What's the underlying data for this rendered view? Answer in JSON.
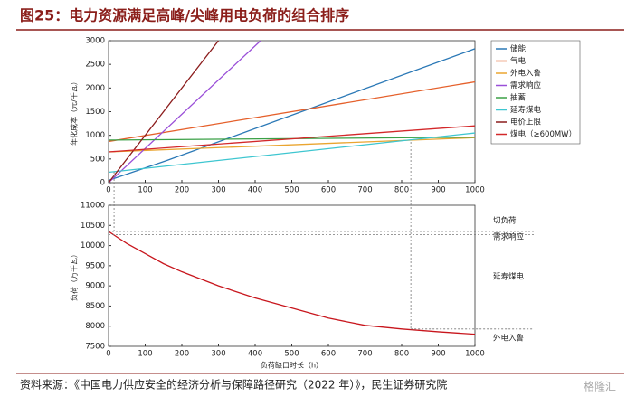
{
  "title": "图25：电力资源满足高峰/尖峰用电负荷的组合排序",
  "source": "资料来源：《中国电力供应安全的经济分析与保障路径研究（2022 年）》，民生证券研究院",
  "watermark": "格隆汇",
  "chart_data": [
    {
      "type": "line",
      "ylabel": "年化成本（元/千瓦）",
      "xlim": [
        0,
        1000
      ],
      "xticks": [
        0,
        100,
        200,
        300,
        400,
        500,
        600,
        700,
        800,
        900,
        1000
      ],
      "ylim": [
        0,
        3000
      ],
      "yticks": [
        0,
        500,
        1000,
        1500,
        2000,
        2500,
        3000
      ],
      "legend": "outside right",
      "series": [
        {
          "name": "储能",
          "color": "#2a78b6",
          "x": [
            0,
            160,
            1000
          ],
          "values": [
            50,
            470,
            2830
          ]
        },
        {
          "name": "气电",
          "color": "#e5602b",
          "x": [
            0,
            1000
          ],
          "values": [
            870,
            2130
          ]
        },
        {
          "name": "外电入鲁",
          "color": "#eaa530",
          "x": [
            0,
            1000
          ],
          "values": [
            650,
            950
          ]
        },
        {
          "name": "需求响应",
          "color": "#9a4fd8",
          "x": [
            0,
            415
          ],
          "values": [
            0,
            3000
          ]
        },
        {
          "name": "抽蓄",
          "color": "#3aa046",
          "x": [
            0,
            1000
          ],
          "values": [
            900,
            960
          ]
        },
        {
          "name": "延寿煤电",
          "color": "#3ec6d0",
          "x": [
            0,
            1000
          ],
          "values": [
            220,
            1050
          ]
        },
        {
          "name": "电价上限",
          "color": "#8b1c1c",
          "x": [
            0,
            300
          ],
          "values": [
            0,
            3000
          ]
        },
        {
          "name": "煤电（≥600MW）",
          "color": "#d3282a",
          "x": [
            0,
            1000
          ],
          "values": [
            650,
            1200
          ]
        }
      ]
    },
    {
      "type": "line",
      "xlabel": "负荷缺口时长（h）",
      "ylabel": "负荷（万千瓦）",
      "xlim": [
        0,
        1000
      ],
      "xticks": [
        0,
        100,
        200,
        300,
        400,
        500,
        600,
        700,
        800,
        900,
        1000
      ],
      "ylim": [
        7500,
        11000
      ],
      "yticks": [
        7500,
        8000,
        8500,
        9000,
        9500,
        10000,
        10500,
        11000
      ],
      "series": [
        {
          "color": "#c8161d",
          "x": [
            0,
            50,
            100,
            150,
            200,
            300,
            400,
            500,
            600,
            700,
            800,
            900,
            1000
          ],
          "values": [
            10350,
            10050,
            9800,
            9550,
            9350,
            9000,
            8700,
            8450,
            8200,
            8020,
            7930,
            7860,
            7800
          ]
        }
      ],
      "vlines": [
        15,
        825
      ],
      "hlines": [
        10350,
        10270,
        7930
      ],
      "annotations": [
        {
          "text": "切负荷"
        },
        {
          "text": "需求响应"
        },
        {
          "text": "延寿煤电"
        },
        {
          "text": "外电入鲁"
        }
      ]
    }
  ]
}
